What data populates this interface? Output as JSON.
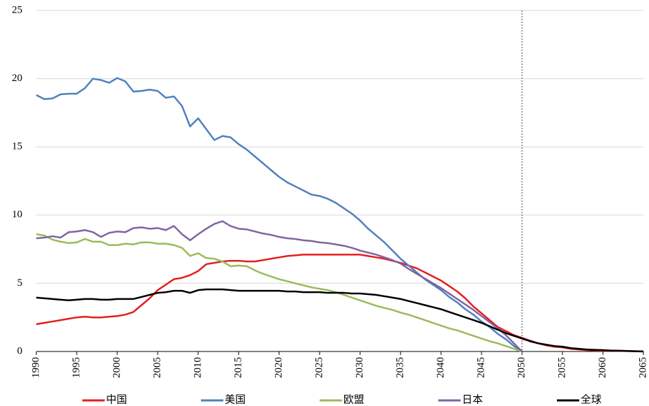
{
  "chart_data": {
    "type": "line",
    "x": [
      1990,
      1991,
      1992,
      1993,
      1994,
      1995,
      1996,
      1997,
      1998,
      1999,
      2000,
      2001,
      2002,
      2003,
      2004,
      2005,
      2006,
      2007,
      2008,
      2009,
      2010,
      2011,
      2012,
      2013,
      2014,
      2015,
      2016,
      2017,
      2018,
      2019,
      2020,
      2021,
      2022,
      2023,
      2024,
      2025,
      2026,
      2027,
      2028,
      2029,
      2030,
      2031,
      2032,
      2033,
      2034,
      2035,
      2036,
      2037,
      2038,
      2039,
      2040,
      2041,
      2042,
      2043,
      2044,
      2045,
      2046,
      2047,
      2048,
      2049,
      2050,
      2051,
      2052,
      2053,
      2054,
      2055,
      2056,
      2057,
      2058,
      2059,
      2060,
      2061,
      2062,
      2063,
      2064,
      2065
    ],
    "xlim": [
      1990,
      2065
    ],
    "xticks": [
      1990,
      1995,
      2000,
      2005,
      2010,
      2015,
      2020,
      2025,
      2030,
      2035,
      2040,
      2045,
      2050,
      2055,
      2060,
      2065
    ],
    "ylim": [
      0,
      25
    ],
    "yticks": [
      0,
      5,
      10,
      15,
      20,
      25
    ],
    "grid": true,
    "reference_line_x": 2050,
    "series": [
      {
        "name": "中国",
        "color": "#e41e1e",
        "values": [
          2.0,
          2.1,
          2.2,
          2.3,
          2.4,
          2.5,
          2.55,
          2.5,
          2.5,
          2.55,
          2.6,
          2.7,
          2.9,
          3.4,
          3.9,
          4.5,
          4.9,
          5.3,
          5.4,
          5.6,
          5.9,
          6.4,
          6.5,
          6.6,
          6.65,
          6.65,
          6.6,
          6.6,
          6.7,
          6.8,
          6.9,
          7.0,
          7.05,
          7.1,
          7.1,
          7.1,
          7.1,
          7.1,
          7.1,
          7.1,
          7.1,
          7.0,
          6.9,
          6.8,
          6.65,
          6.5,
          6.3,
          6.1,
          5.8,
          5.5,
          5.2,
          4.8,
          4.4,
          3.9,
          3.3,
          2.8,
          2.3,
          1.8,
          1.5,
          1.2,
          1.0,
          0.8,
          0.6,
          0.45,
          0.35,
          0.3,
          0.2,
          0.15,
          0.1,
          0.08,
          0.06,
          0.05,
          0.04,
          0.03,
          0.02,
          0.01
        ]
      },
      {
        "name": "美国",
        "color": "#4f81bd",
        "values": [
          18.8,
          18.5,
          18.55,
          18.85,
          18.9,
          18.9,
          19.3,
          20.0,
          19.9,
          19.7,
          20.05,
          19.8,
          19.05,
          19.1,
          19.2,
          19.1,
          18.6,
          18.7,
          18.0,
          16.5,
          17.1,
          16.3,
          15.5,
          15.8,
          15.7,
          15.2,
          14.8,
          14.3,
          13.8,
          13.3,
          12.8,
          12.4,
          12.1,
          11.8,
          11.5,
          11.4,
          11.2,
          10.9,
          10.5,
          10.1,
          9.6,
          9.0,
          8.5,
          8.0,
          7.4,
          6.8,
          6.3,
          5.8,
          5.3,
          4.9,
          4.5,
          4.0,
          3.6,
          3.1,
          2.7,
          2.2,
          1.8,
          1.3,
          0.9,
          0.4,
          0,
          null,
          null,
          null,
          null,
          null,
          null,
          null,
          null,
          null,
          null,
          null,
          null,
          null,
          null,
          null
        ]
      },
      {
        "name": "欧盟",
        "color": "#9bbb59",
        "values": [
          8.6,
          8.5,
          8.2,
          8.05,
          7.95,
          8.0,
          8.25,
          8.05,
          8.05,
          7.8,
          7.8,
          7.9,
          7.85,
          8.0,
          8.0,
          7.9,
          7.9,
          7.8,
          7.6,
          7.0,
          7.2,
          6.85,
          6.8,
          6.6,
          6.25,
          6.3,
          6.25,
          5.95,
          5.7,
          5.5,
          5.3,
          5.15,
          5.0,
          4.85,
          4.7,
          4.6,
          4.5,
          4.35,
          4.15,
          3.95,
          3.75,
          3.55,
          3.35,
          3.2,
          3.05,
          2.85,
          2.7,
          2.5,
          2.3,
          2.1,
          1.9,
          1.7,
          1.55,
          1.35,
          1.15,
          0.95,
          0.75,
          0.6,
          0.4,
          0.2,
          0,
          null,
          null,
          null,
          null,
          null,
          null,
          null,
          null,
          null,
          null,
          null,
          null,
          null,
          null,
          null
        ]
      },
      {
        "name": "日本",
        "color": "#8064a2",
        "values": [
          8.3,
          8.35,
          8.45,
          8.35,
          8.75,
          8.8,
          8.9,
          8.75,
          8.4,
          8.7,
          8.8,
          8.75,
          9.05,
          9.1,
          9.0,
          9.05,
          8.9,
          9.2,
          8.6,
          8.15,
          8.6,
          9.0,
          9.35,
          9.55,
          9.2,
          9.0,
          8.95,
          8.8,
          8.65,
          8.55,
          8.4,
          8.3,
          8.25,
          8.15,
          8.1,
          8.0,
          7.95,
          7.85,
          7.75,
          7.6,
          7.4,
          7.25,
          7.1,
          6.9,
          6.7,
          6.45,
          6.05,
          5.7,
          5.35,
          5.0,
          4.65,
          4.25,
          3.85,
          3.45,
          3.05,
          2.6,
          2.15,
          1.7,
          1.2,
          0.6,
          0,
          null,
          null,
          null,
          null,
          null,
          null,
          null,
          null,
          null,
          null,
          null,
          null,
          null,
          null,
          null
        ]
      },
      {
        "name": "全球",
        "color": "#000000",
        "values": [
          3.95,
          3.9,
          3.85,
          3.8,
          3.75,
          3.8,
          3.85,
          3.85,
          3.8,
          3.8,
          3.85,
          3.85,
          3.85,
          4.0,
          4.15,
          4.3,
          4.35,
          4.45,
          4.45,
          4.3,
          4.5,
          4.55,
          4.55,
          4.55,
          4.5,
          4.45,
          4.45,
          4.45,
          4.45,
          4.45,
          4.45,
          4.4,
          4.4,
          4.35,
          4.35,
          4.35,
          4.3,
          4.3,
          4.3,
          4.25,
          4.25,
          4.2,
          4.15,
          4.05,
          3.95,
          3.85,
          3.7,
          3.55,
          3.4,
          3.25,
          3.1,
          2.9,
          2.7,
          2.5,
          2.3,
          2.1,
          1.85,
          1.6,
          1.35,
          1.15,
          0.95,
          0.75,
          0.6,
          0.5,
          0.4,
          0.35,
          0.25,
          0.2,
          0.15,
          0.12,
          0.1,
          0.07,
          0.06,
          0.04,
          0.02,
          0
        ]
      }
    ]
  }
}
